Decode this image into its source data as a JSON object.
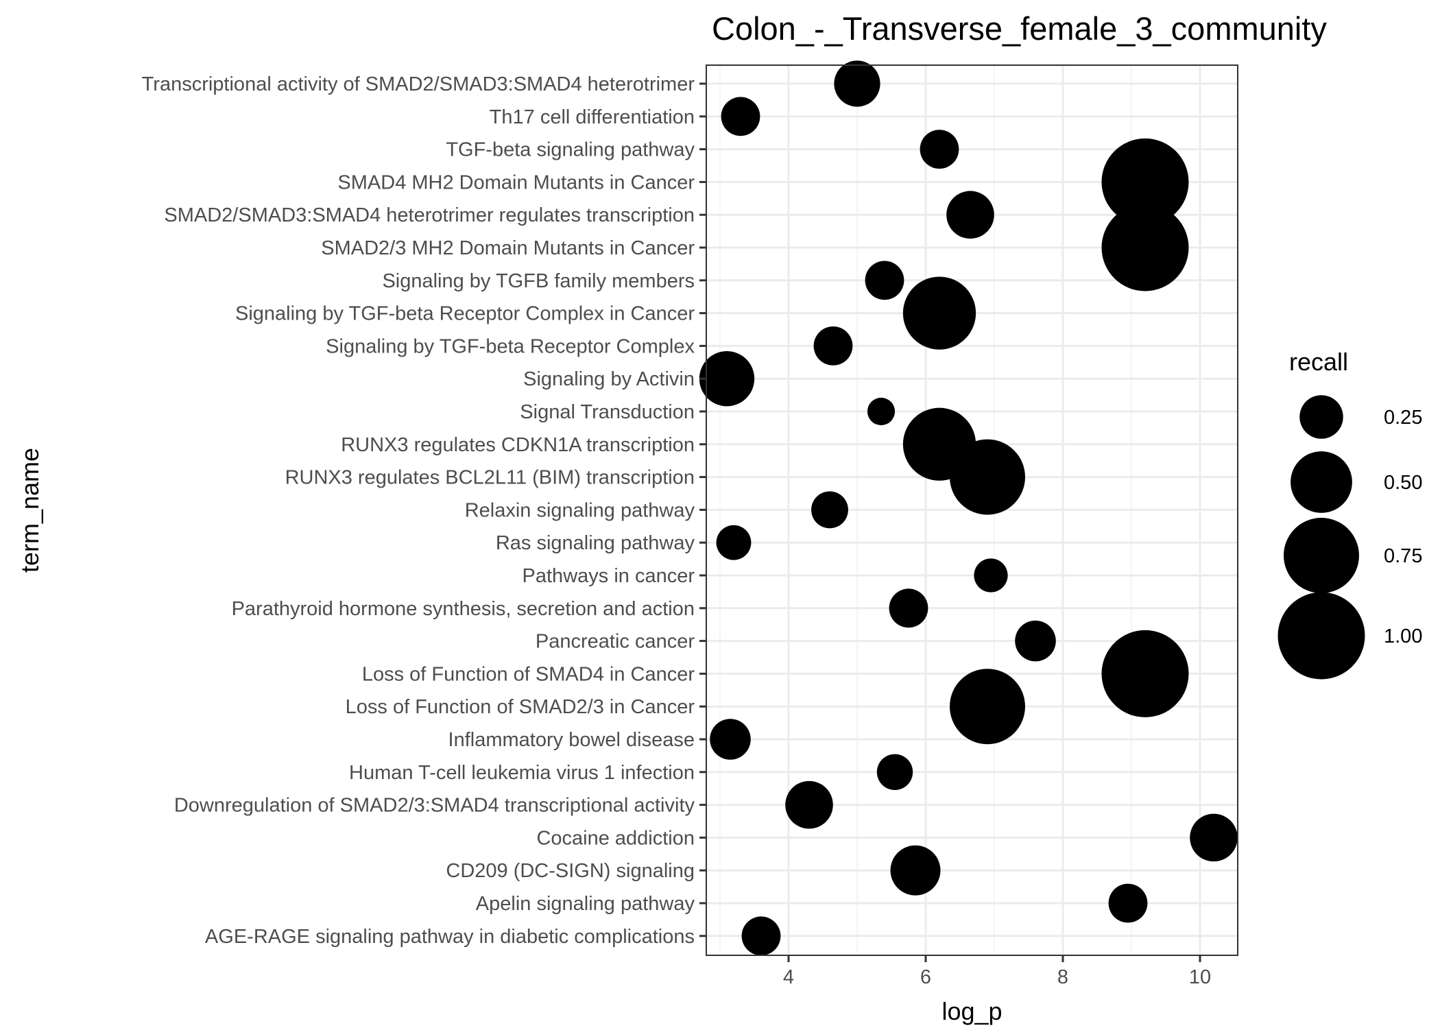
{
  "chart_data": {
    "type": "scatter",
    "title": "Colon_-_Transverse_female_3_community",
    "xlabel": "log_p",
    "ylabel": "term_name",
    "xlim": [
      2.8,
      10.55
    ],
    "x_ticks": [
      4,
      6,
      8,
      10
    ],
    "grid": true,
    "size_variable": "recall",
    "legend": {
      "title": "recall",
      "position": "right",
      "entries": [
        {
          "label": "0.25",
          "value": 0.25
        },
        {
          "label": "0.50",
          "value": 0.5
        },
        {
          "label": "0.75",
          "value": 0.75
        },
        {
          "label": "1.00",
          "value": 1.0
        }
      ]
    },
    "points": [
      {
        "term": "Transcriptional activity of SMAD2/SMAD3:SMAD4 heterotrimer",
        "log_p": 5.0,
        "recall": 0.28
      },
      {
        "term": "Th17 cell differentiation",
        "log_p": 3.3,
        "recall": 0.2
      },
      {
        "term": "TGF-beta signaling pathway",
        "log_p": 6.2,
        "recall": 0.2
      },
      {
        "term": "SMAD4 MH2 Domain Mutants in Cancer",
        "log_p": 9.2,
        "recall": 1.0
      },
      {
        "term": "SMAD2/SMAD3:SMAD4 heterotrimer regulates transcription",
        "log_p": 6.65,
        "recall": 0.3
      },
      {
        "term": "SMAD2/3 MH2 Domain Mutants in Cancer",
        "log_p": 9.2,
        "recall": 1.0
      },
      {
        "term": "Signaling by TGFB family members",
        "log_p": 5.4,
        "recall": 0.2
      },
      {
        "term": "Signaling by TGF-beta Receptor Complex in Cancer",
        "log_p": 6.2,
        "recall": 0.7
      },
      {
        "term": "Signaling by TGF-beta Receptor Complex",
        "log_p": 4.65,
        "recall": 0.2
      },
      {
        "term": "Signaling by Activin",
        "log_p": 3.1,
        "recall": 0.4
      },
      {
        "term": "Signal Transduction",
        "log_p": 5.35,
        "recall": 0.1
      },
      {
        "term": "RUNX3 regulates CDKN1A transcription",
        "log_p": 6.2,
        "recall": 0.7
      },
      {
        "term": "RUNX3 regulates BCL2L11 (BIM) transcription",
        "log_p": 6.9,
        "recall": 0.75
      },
      {
        "term": "Relaxin signaling pathway",
        "log_p": 4.6,
        "recall": 0.18
      },
      {
        "term": "Ras signaling pathway",
        "log_p": 3.2,
        "recall": 0.16
      },
      {
        "term": "Pathways in cancer",
        "log_p": 6.95,
        "recall": 0.15
      },
      {
        "term": "Parathyroid hormone synthesis, secretion and action",
        "log_p": 5.75,
        "recall": 0.2
      },
      {
        "term": "Pancreatic cancer",
        "log_p": 7.6,
        "recall": 0.22
      },
      {
        "term": "Loss of Function of SMAD4 in Cancer",
        "log_p": 9.2,
        "recall": 1.0
      },
      {
        "term": "Loss of Function of SMAD2/3 in Cancer",
        "log_p": 6.9,
        "recall": 0.75
      },
      {
        "term": "Inflammatory bowel disease",
        "log_p": 3.15,
        "recall": 0.22
      },
      {
        "term": "Human T-cell leukemia virus 1 infection",
        "log_p": 5.55,
        "recall": 0.17
      },
      {
        "term": "Downregulation of SMAD2/3:SMAD4 transcriptional activity",
        "log_p": 4.3,
        "recall": 0.3
      },
      {
        "term": "Cocaine addiction",
        "log_p": 10.2,
        "recall": 0.3
      },
      {
        "term": "CD209 (DC-SIGN) signaling",
        "log_p": 5.85,
        "recall": 0.33
      },
      {
        "term": "Apelin signaling pathway",
        "log_p": 8.95,
        "recall": 0.2
      },
      {
        "term": "AGE-RAGE signaling pathway in diabetic complications",
        "log_p": 3.6,
        "recall": 0.2
      }
    ]
  }
}
